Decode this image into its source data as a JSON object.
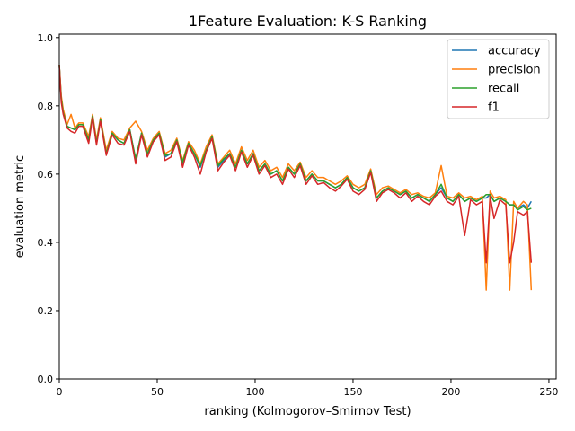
{
  "chart_data": {
    "type": "line",
    "title": "1Feature Evaluation: K-S Ranking",
    "xlabel": "ranking (Kolmogorov–Smirnov Test)",
    "ylabel": "evaluation metric",
    "xlim": [
      0,
      253.7
    ],
    "ylim": [
      0,
      1.01
    ],
    "xticks": [
      0,
      50,
      100,
      150,
      200,
      250
    ],
    "yticks": [
      0.0,
      0.2,
      0.4,
      0.6,
      0.8,
      1.0
    ],
    "grid": false,
    "legend_position": "top-right",
    "x": [
      0,
      1,
      2,
      4,
      6,
      8,
      10,
      12,
      15,
      17,
      19,
      21,
      24,
      27,
      30,
      33,
      36,
      39,
      42,
      45,
      48,
      51,
      54,
      57,
      60,
      63,
      66,
      69,
      72,
      75,
      78,
      81,
      84,
      87,
      90,
      93,
      96,
      99,
      102,
      105,
      108,
      111,
      114,
      117,
      120,
      123,
      126,
      129,
      132,
      135,
      138,
      141,
      144,
      147,
      150,
      153,
      156,
      159,
      162,
      165,
      168,
      171,
      174,
      177,
      180,
      183,
      186,
      189,
      192,
      195,
      198,
      201,
      204,
      207,
      210,
      213,
      216,
      218,
      220,
      222,
      225,
      228,
      230,
      232,
      234,
      237,
      239,
      241
    ],
    "series": [
      {
        "name": "accuracy",
        "color": "#1f77b4",
        "values": [
          0.92,
          0.82,
          0.78,
          0.74,
          0.735,
          0.73,
          0.745,
          0.745,
          0.7,
          0.77,
          0.69,
          0.76,
          0.66,
          0.72,
          0.7,
          0.69,
          0.73,
          0.64,
          0.72,
          0.66,
          0.7,
          0.72,
          0.65,
          0.66,
          0.7,
          0.63,
          0.69,
          0.66,
          0.62,
          0.67,
          0.71,
          0.62,
          0.64,
          0.66,
          0.62,
          0.67,
          0.63,
          0.66,
          0.61,
          0.63,
          0.6,
          0.61,
          0.58,
          0.62,
          0.6,
          0.63,
          0.58,
          0.6,
          0.58,
          0.58,
          0.57,
          0.56,
          0.57,
          0.59,
          0.56,
          0.55,
          0.56,
          0.61,
          0.53,
          0.55,
          0.56,
          0.55,
          0.54,
          0.55,
          0.53,
          0.54,
          0.53,
          0.52,
          0.54,
          0.56,
          0.53,
          0.52,
          0.54,
          0.52,
          0.53,
          0.52,
          0.53,
          0.53,
          0.54,
          0.52,
          0.53,
          0.52,
          0.51,
          0.51,
          0.5,
          0.51,
          0.5,
          0.52
        ]
      },
      {
        "name": "precision",
        "color": "#ff7f0e",
        "values": [
          0.92,
          0.83,
          0.79,
          0.745,
          0.775,
          0.735,
          0.75,
          0.75,
          0.71,
          0.775,
          0.7,
          0.765,
          0.67,
          0.725,
          0.705,
          0.7,
          0.735,
          0.755,
          0.725,
          0.67,
          0.705,
          0.725,
          0.66,
          0.67,
          0.705,
          0.64,
          0.695,
          0.67,
          0.63,
          0.68,
          0.715,
          0.63,
          0.65,
          0.67,
          0.63,
          0.68,
          0.64,
          0.67,
          0.62,
          0.64,
          0.61,
          0.62,
          0.59,
          0.63,
          0.61,
          0.635,
          0.59,
          0.61,
          0.59,
          0.59,
          0.58,
          0.57,
          0.58,
          0.595,
          0.57,
          0.56,
          0.57,
          0.615,
          0.54,
          0.56,
          0.565,
          0.555,
          0.545,
          0.555,
          0.54,
          0.545,
          0.535,
          0.53,
          0.545,
          0.625,
          0.535,
          0.53,
          0.545,
          0.53,
          0.535,
          0.525,
          0.535,
          0.26,
          0.55,
          0.53,
          0.535,
          0.525,
          0.26,
          0.52,
          0.5,
          0.52,
          0.51,
          0.26
        ]
      },
      {
        "name": "recall",
        "color": "#2ca02c",
        "values": [
          0.92,
          0.82,
          0.78,
          0.74,
          0.735,
          0.73,
          0.745,
          0.745,
          0.7,
          0.77,
          0.69,
          0.76,
          0.66,
          0.72,
          0.7,
          0.69,
          0.73,
          0.645,
          0.72,
          0.66,
          0.7,
          0.72,
          0.655,
          0.66,
          0.7,
          0.635,
          0.69,
          0.66,
          0.625,
          0.67,
          0.71,
          0.625,
          0.645,
          0.66,
          0.62,
          0.67,
          0.63,
          0.66,
          0.61,
          0.63,
          0.6,
          0.61,
          0.58,
          0.62,
          0.6,
          0.63,
          0.58,
          0.6,
          0.58,
          0.58,
          0.57,
          0.56,
          0.57,
          0.59,
          0.56,
          0.55,
          0.56,
          0.61,
          0.53,
          0.55,
          0.56,
          0.55,
          0.54,
          0.55,
          0.53,
          0.54,
          0.53,
          0.52,
          0.54,
          0.57,
          0.53,
          0.52,
          0.54,
          0.52,
          0.53,
          0.52,
          0.53,
          0.54,
          0.54,
          0.52,
          0.53,
          0.52,
          0.51,
          0.51,
          0.495,
          0.505,
          0.495,
          0.5
        ]
      },
      {
        "name": "f1",
        "color": "#d62728",
        "values": [
          0.92,
          0.81,
          0.775,
          0.735,
          0.725,
          0.72,
          0.74,
          0.74,
          0.69,
          0.765,
          0.685,
          0.755,
          0.655,
          0.715,
          0.69,
          0.685,
          0.725,
          0.63,
          0.715,
          0.65,
          0.695,
          0.715,
          0.64,
          0.65,
          0.695,
          0.62,
          0.685,
          0.65,
          0.6,
          0.665,
          0.705,
          0.61,
          0.635,
          0.655,
          0.61,
          0.665,
          0.62,
          0.655,
          0.6,
          0.625,
          0.59,
          0.6,
          0.57,
          0.615,
          0.59,
          0.625,
          0.57,
          0.595,
          0.57,
          0.575,
          0.56,
          0.55,
          0.565,
          0.585,
          0.55,
          0.54,
          0.555,
          0.605,
          0.52,
          0.545,
          0.555,
          0.545,
          0.53,
          0.545,
          0.52,
          0.535,
          0.52,
          0.51,
          0.535,
          0.55,
          0.52,
          0.51,
          0.535,
          0.42,
          0.525,
          0.51,
          0.52,
          0.34,
          0.535,
          0.47,
          0.525,
          0.51,
          0.34,
          0.4,
          0.49,
          0.48,
          0.49,
          0.34
        ]
      }
    ]
  }
}
